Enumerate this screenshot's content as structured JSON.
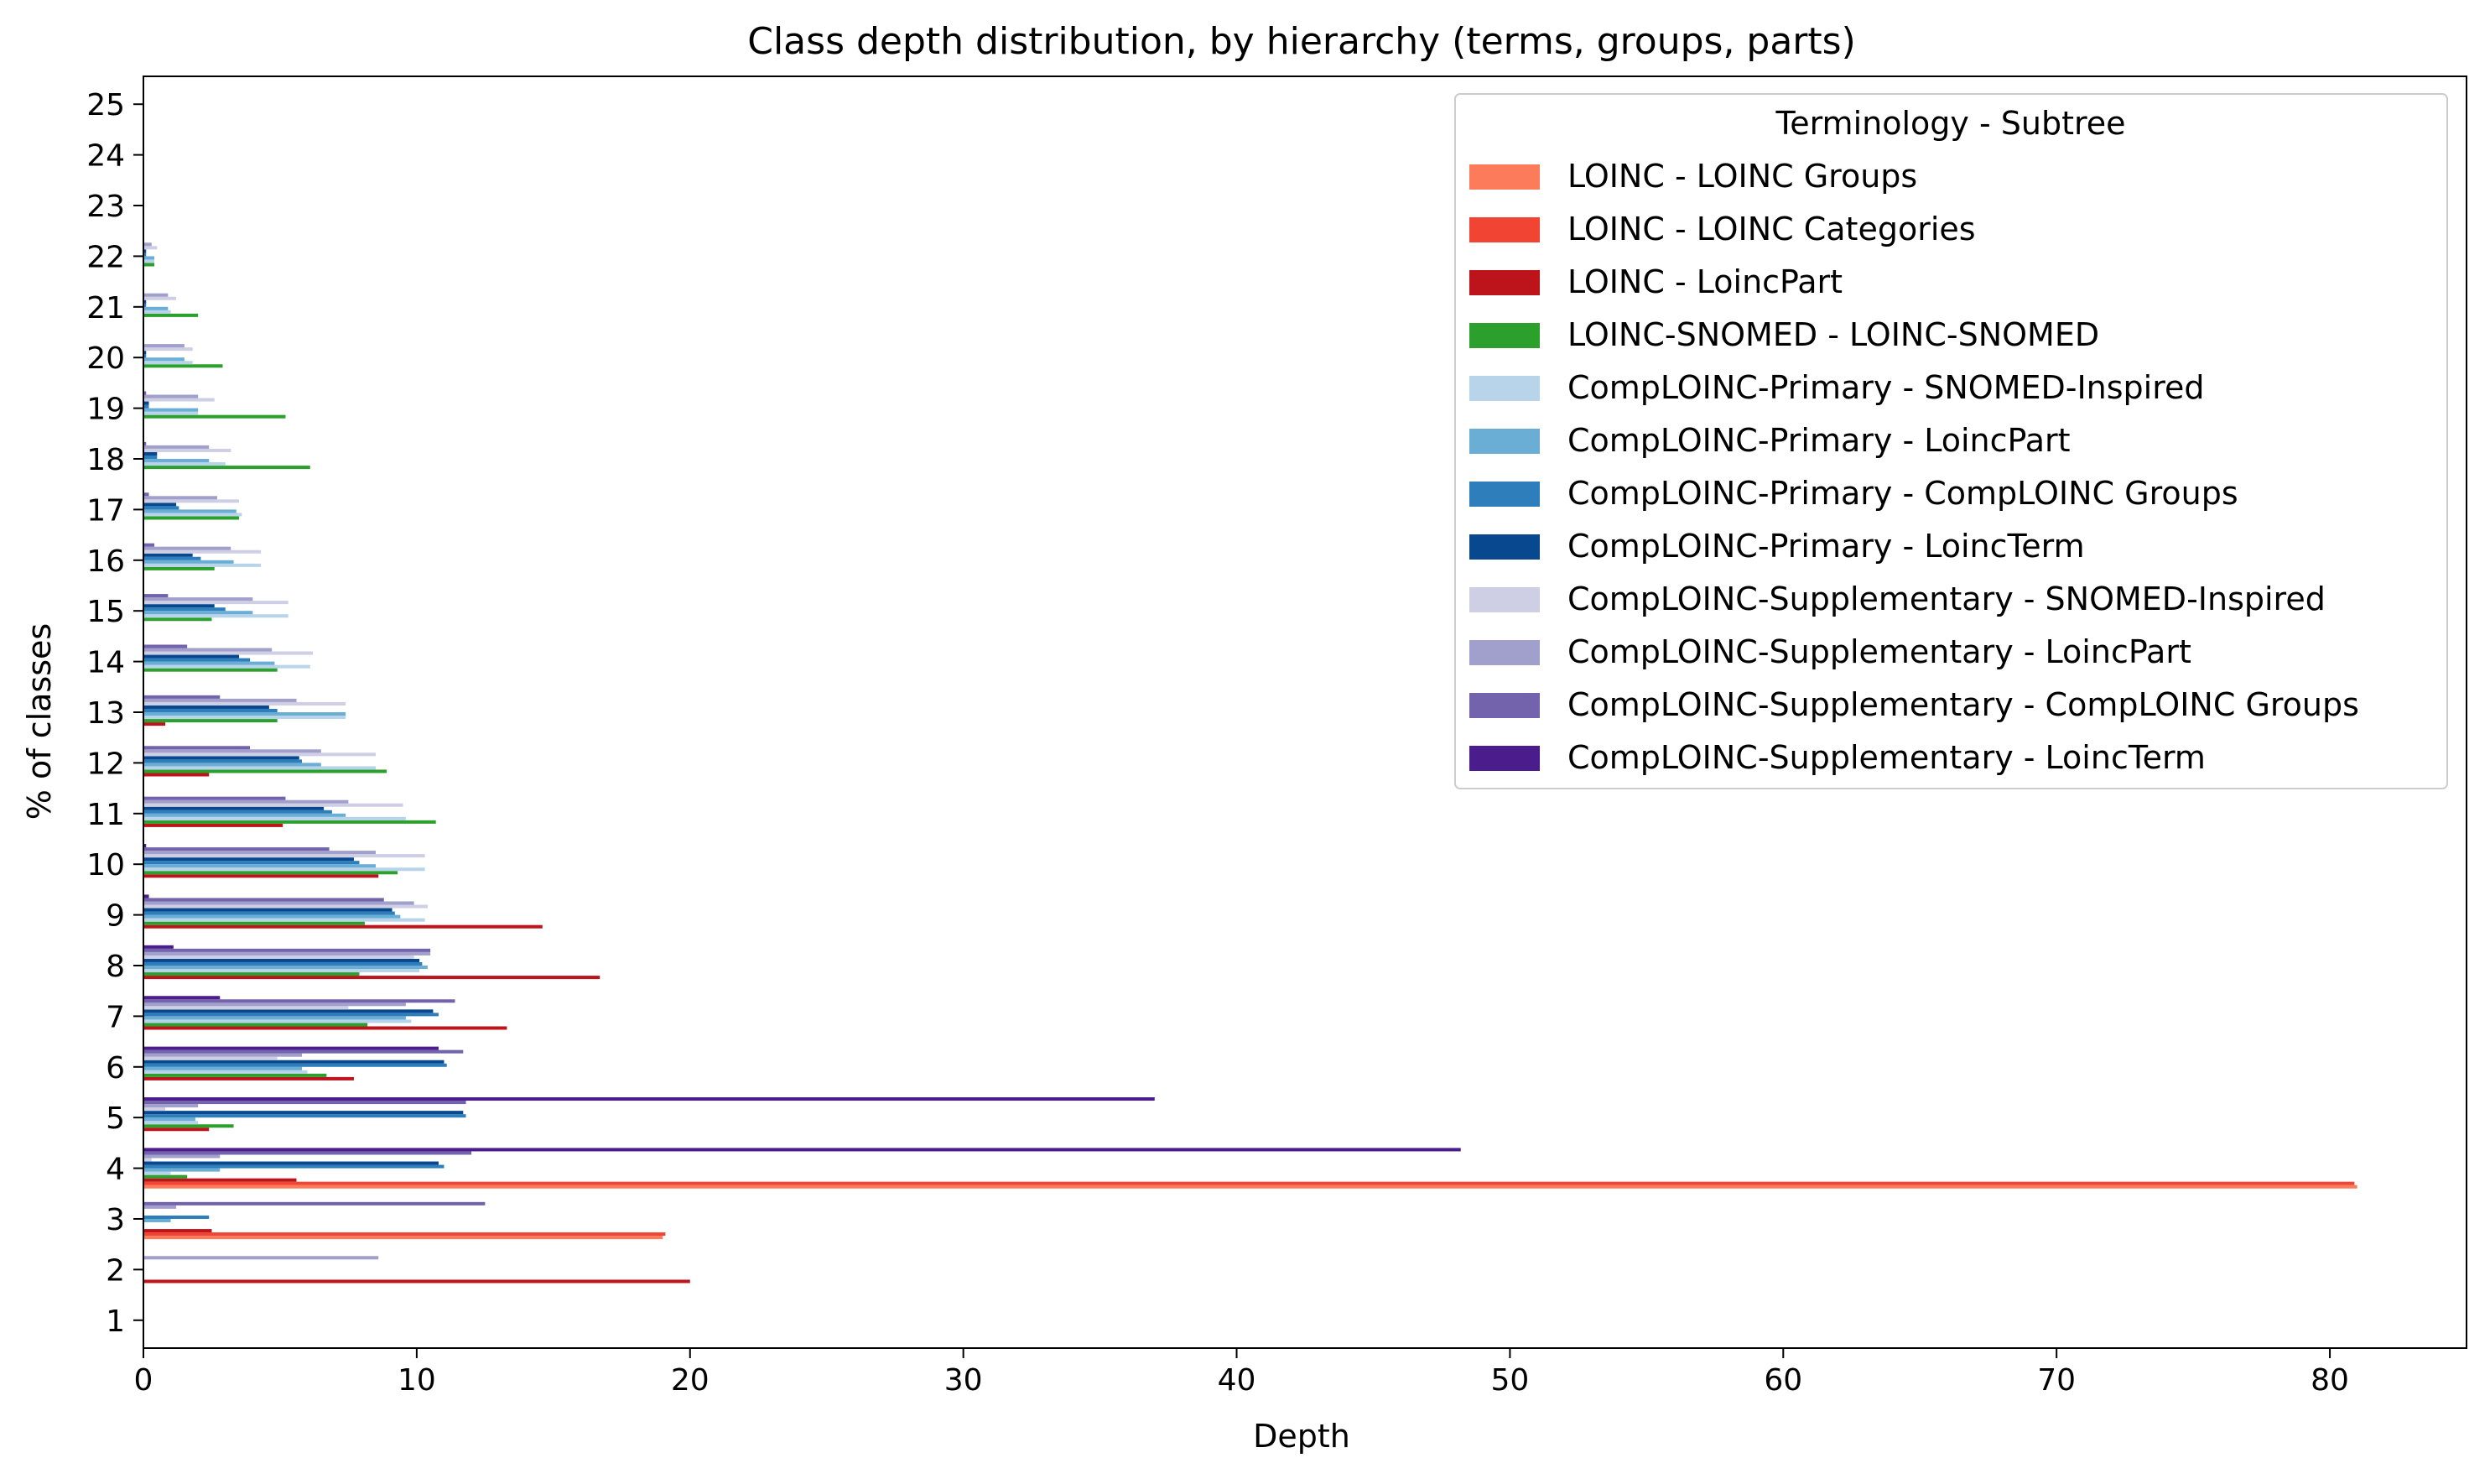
{
  "chart_data": {
    "type": "bar",
    "orientation": "horizontal",
    "title": "Class depth distribution, by hierarchy (terms, groups, parts)",
    "xlabel": "Depth",
    "ylabel": "% of classes",
    "xlim": [
      0,
      85
    ],
    "xticks": [
      0,
      10,
      20,
      30,
      40,
      50,
      60,
      70,
      80
    ],
    "categories": [
      1,
      2,
      3,
      4,
      5,
      6,
      7,
      8,
      9,
      10,
      11,
      12,
      13,
      14,
      15,
      16,
      17,
      18,
      19,
      20,
      21,
      22,
      23,
      24,
      25
    ],
    "grid": false,
    "legend": {
      "title": "Terminology - Subtree",
      "placement": "top-right"
    },
    "series": [
      {
        "name": "LOINC - LOINC Groups",
        "color": "#fb7b5b",
        "values": [
          0,
          0,
          19.0,
          81.0,
          0,
          0,
          0,
          0,
          0,
          0,
          0,
          0,
          0,
          0,
          0,
          0,
          0,
          0,
          0,
          0,
          0,
          0,
          0,
          0,
          0
        ]
      },
      {
        "name": "LOINC - LOINC Categories",
        "color": "#f14432",
        "values": [
          0,
          0,
          19.1,
          80.9,
          0,
          0,
          0,
          0,
          0,
          0,
          0,
          0,
          0,
          0,
          0,
          0,
          0,
          0,
          0,
          0,
          0,
          0,
          0,
          0,
          0
        ]
      },
      {
        "name": "LOINC - LoincPart",
        "color": "#bc141a",
        "values": [
          0,
          20.0,
          2.5,
          5.6,
          2.4,
          7.7,
          13.3,
          16.7,
          14.6,
          8.6,
          5.1,
          2.4,
          0.8,
          0,
          0,
          0,
          0,
          0,
          0,
          0,
          0,
          0,
          0,
          0,
          0
        ]
      },
      {
        "name": "LOINC-SNOMED - LOINC-SNOMED",
        "color": "#2ca02c",
        "values": [
          0,
          0,
          0,
          1.6,
          3.3,
          6.7,
          8.2,
          7.9,
          8.1,
          9.3,
          10.7,
          8.9,
          4.9,
          4.9,
          2.5,
          2.6,
          3.5,
          6.1,
          5.2,
          2.9,
          2.0,
          0.4,
          0,
          0,
          0
        ]
      },
      {
        "name": "CompLOINC-Primary - SNOMED-Inspired",
        "color": "#b7d4ea",
        "values": [
          0,
          0,
          0,
          1.0,
          2.0,
          6.0,
          9.8,
          10.1,
          10.3,
          10.3,
          9.6,
          8.5,
          7.4,
          6.1,
          5.3,
          4.3,
          3.6,
          3.0,
          2.0,
          1.8,
          1.0,
          0.4,
          0,
          0,
          0
        ]
      },
      {
        "name": "CompLOINC-Primary - LoincPart",
        "color": "#6aaed6",
        "values": [
          0,
          0,
          1.0,
          2.8,
          1.9,
          5.8,
          9.6,
          10.4,
          9.4,
          8.5,
          7.4,
          6.5,
          7.4,
          4.8,
          4.0,
          3.3,
          3.4,
          2.4,
          2.0,
          1.5,
          0.9,
          0.4,
          0,
          0,
          0
        ]
      },
      {
        "name": "CompLOINC-Primary - CompLOINC Groups",
        "color": "#2e7ebc",
        "values": [
          0,
          0,
          2.4,
          11.0,
          11.8,
          11.1,
          10.8,
          10.2,
          9.2,
          7.9,
          6.9,
          5.8,
          4.9,
          3.9,
          3.0,
          2.1,
          1.3,
          0.5,
          0.2,
          0.1,
          0.1,
          0.1,
          0,
          0,
          0
        ]
      },
      {
        "name": "CompLOINC-Primary - LoincTerm",
        "color": "#08488e",
        "values": [
          0,
          0,
          0,
          10.8,
          11.7,
          11.0,
          10.6,
          10.1,
          9.1,
          7.7,
          6.6,
          5.7,
          4.6,
          3.5,
          2.6,
          1.8,
          1.2,
          0.5,
          0.2,
          0.1,
          0.1,
          0.1,
          0,
          0,
          0
        ]
      },
      {
        "name": "CompLOINC-Supplementary - SNOMED-Inspired",
        "color": "#cecee5",
        "values": [
          0,
          0,
          0,
          0.3,
          0.8,
          4.9,
          7.5,
          9.9,
          10.4,
          10.3,
          9.5,
          8.5,
          7.4,
          6.2,
          5.3,
          4.3,
          3.5,
          3.2,
          2.6,
          1.8,
          1.2,
          0.5,
          0,
          0,
          0
        ]
      },
      {
        "name": "CompLOINC-Supplementary - LoincPart",
        "color": "#a19fcb",
        "values": [
          0,
          8.6,
          1.2,
          2.8,
          2.0,
          5.8,
          9.6,
          10.5,
          9.9,
          8.5,
          7.5,
          6.5,
          5.6,
          4.7,
          4.0,
          3.2,
          2.7,
          2.4,
          2.0,
          1.5,
          0.9,
          0.3,
          0,
          0,
          0
        ]
      },
      {
        "name": "CompLOINC-Supplementary - CompLOINC Groups",
        "color": "#7363ac",
        "values": [
          0,
          0,
          12.5,
          12.0,
          11.8,
          11.7,
          11.4,
          10.5,
          8.8,
          6.8,
          5.2,
          3.9,
          2.8,
          1.6,
          0.9,
          0.4,
          0.2,
          0.1,
          0.1,
          0,
          0,
          0,
          0,
          0,
          0
        ]
      },
      {
        "name": "CompLOINC-Supplementary - LoincTerm",
        "color": "#4b1c8b",
        "values": [
          0,
          0,
          0,
          48.2,
          37.0,
          10.8,
          2.8,
          1.1,
          0.2,
          0.1,
          0,
          0,
          0,
          0,
          0,
          0,
          0,
          0,
          0,
          0,
          0,
          0,
          0,
          0,
          0
        ]
      }
    ]
  }
}
